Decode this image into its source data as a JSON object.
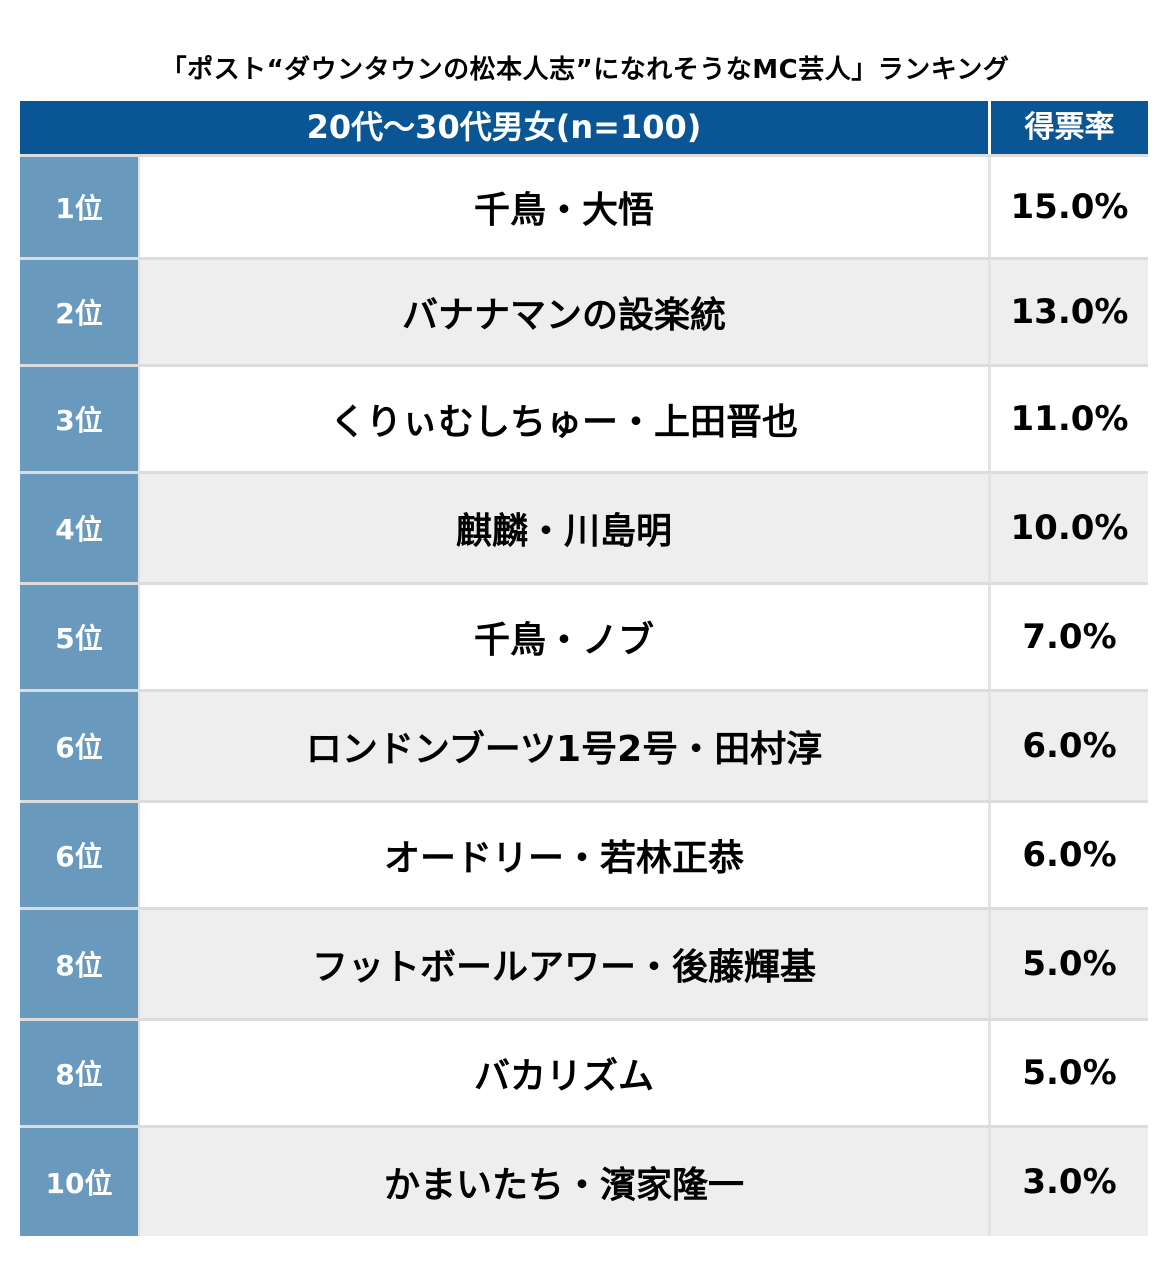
{
  "title": "「ポスト“ダウンタウンの松本人志”になれそうなMC芸人」ランキング",
  "header": {
    "group": "20代〜30代男女(n=100)",
    "rate": "得票率"
  },
  "rows": [
    {
      "rank": "1位",
      "name": "千鳥・大悟",
      "rate": "15.0%"
    },
    {
      "rank": "2位",
      "name": "バナナマンの設楽統",
      "rate": "13.0%"
    },
    {
      "rank": "3位",
      "name": "くりぃむしちゅー・上田晋也",
      "rate": "11.0%"
    },
    {
      "rank": "4位",
      "name": "麒麟・川島明",
      "rate": "10.0%"
    },
    {
      "rank": "5位",
      "name": "千鳥・ノブ",
      "rate": "7.0%"
    },
    {
      "rank": "6位",
      "name": "ロンドンブーツ1号2号・田村淳",
      "rate": "6.0%"
    },
    {
      "rank": "6位",
      "name": "オードリー・若林正恭",
      "rate": "6.0%"
    },
    {
      "rank": "8位",
      "name": "フットボールアワー・後藤輝基",
      "rate": "5.0%"
    },
    {
      "rank": "8位",
      "name": "バカリズム",
      "rate": "5.0%"
    },
    {
      "rank": "10位",
      "name": "かまいたち・濱家隆一",
      "rate": "3.0%"
    }
  ],
  "colors": {
    "header_bg": "#0a5593",
    "rank_bg": "#6a99be",
    "alt_row_bg": "#eeeeee"
  }
}
